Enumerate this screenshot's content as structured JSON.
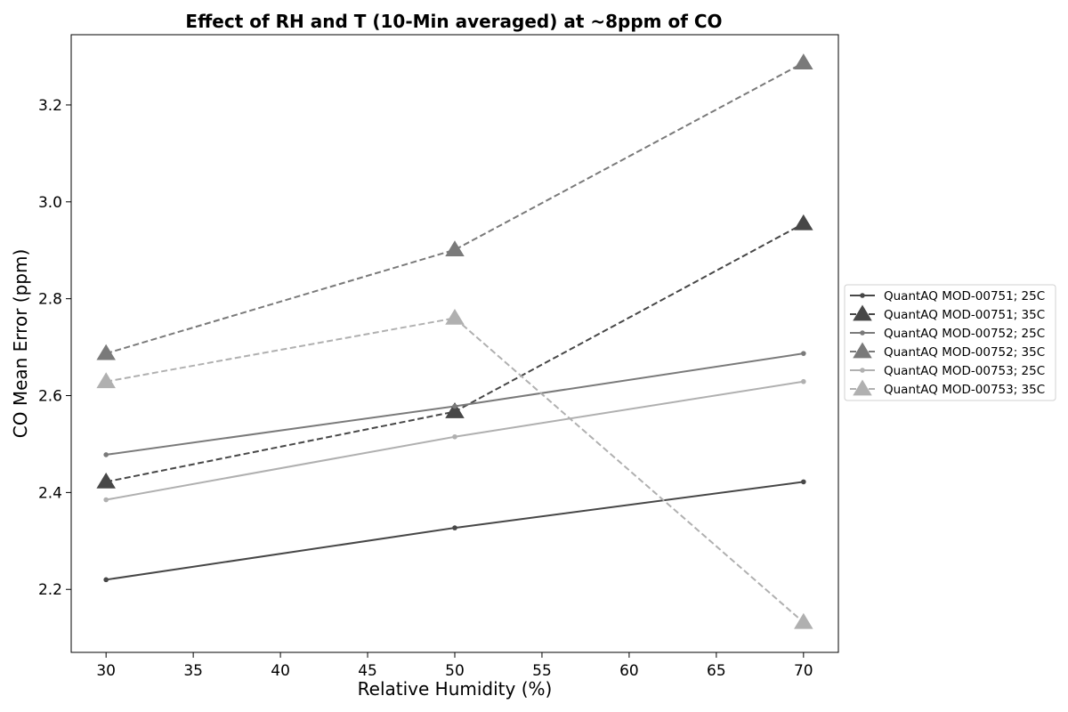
{
  "chart_data": {
    "type": "line",
    "title": "Effect of RH and T (10-Min averaged) at ~8ppm of CO",
    "xlabel": "Relative Humidity (%)",
    "ylabel": "CO Mean Error (ppm)",
    "xlim": [
      28,
      72
    ],
    "ylim": [
      2.07,
      3.345
    ],
    "xticks": [
      30,
      35,
      40,
      45,
      50,
      55,
      60,
      65,
      70
    ],
    "yticks": [
      2.2,
      2.4,
      2.6,
      2.8,
      3.0,
      3.2
    ],
    "ytick_labels": [
      "2.2",
      "2.4",
      "2.6",
      "2.8",
      "3.0",
      "3.2"
    ],
    "grid": false,
    "legend_position": "right-outside",
    "x": [
      30,
      50,
      70
    ],
    "series": [
      {
        "name": "QuantAQ MOD-00751; 25C",
        "values": [
          2.22,
          2.327,
          2.422
        ],
        "color": "#474747",
        "linestyle": "solid",
        "marker": "dot"
      },
      {
        "name": "QuantAQ MOD-00751; 35C",
        "values": [
          2.422,
          2.567,
          2.955
        ],
        "color": "#474747",
        "linestyle": "dashed",
        "marker": "triangle"
      },
      {
        "name": "QuantAQ MOD-00752; 25C",
        "values": [
          2.478,
          2.578,
          2.687
        ],
        "color": "#7a7a7a",
        "linestyle": "solid",
        "marker": "dot"
      },
      {
        "name": "QuantAQ MOD-00752; 35C",
        "values": [
          2.687,
          2.901,
          3.287
        ],
        "color": "#7a7a7a",
        "linestyle": "dashed",
        "marker": "triangle"
      },
      {
        "name": "QuantAQ MOD-00753; 25C",
        "values": [
          2.385,
          2.515,
          2.629
        ],
        "color": "#b0b0b0",
        "linestyle": "solid",
        "marker": "dot"
      },
      {
        "name": "QuantAQ MOD-00753; 35C",
        "values": [
          2.629,
          2.76,
          2.132
        ],
        "color": "#b0b0b0",
        "linestyle": "dashed",
        "marker": "triangle"
      }
    ]
  }
}
